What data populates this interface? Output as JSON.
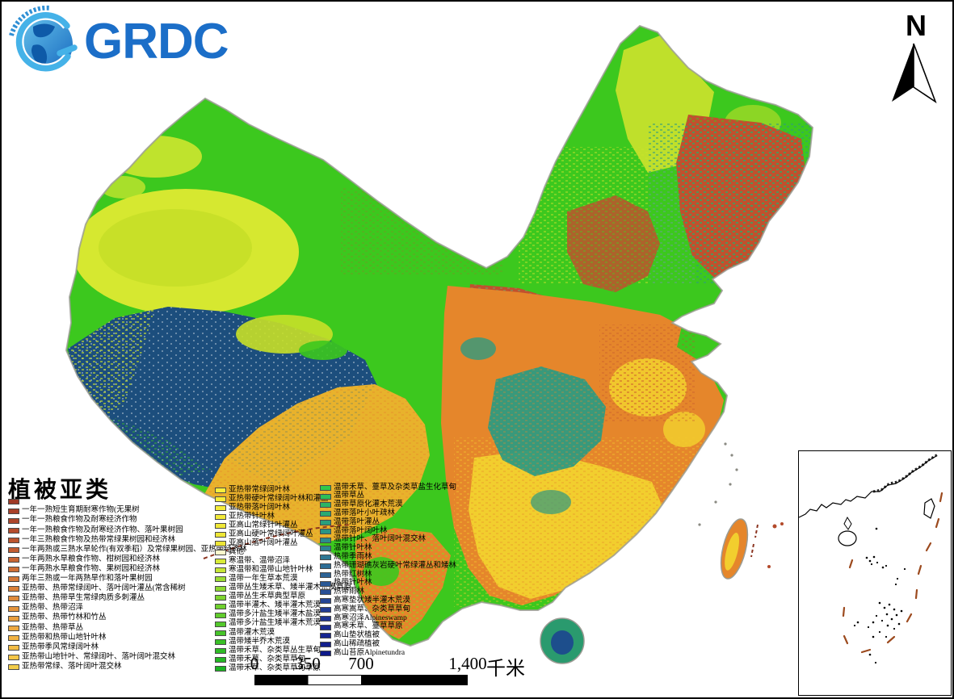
{
  "logo": {
    "text": "GRDC"
  },
  "north_arrow": {
    "label": "N"
  },
  "legend": {
    "title": "植被亚类",
    "columns": [
      {
        "items": [
          {
            "label": "",
            "color": "#9e3a27"
          },
          {
            "label": "一年一熟短生育期耐寒作物(无果树",
            "color": "#a84029"
          },
          {
            "label": "一年一熟粮食作物及耐寒经济作物",
            "color": "#ae462b"
          },
          {
            "label": "一年一熟粮食作物及耐寒经济作物、落叶果树园",
            "color": "#b54d2d"
          },
          {
            "label": "一年三熟粮食作物及热带常绿果树园和经济林",
            "color": "#bb552f"
          },
          {
            "label": "一年两熟或三熟水旱轮作(有双季稻）及常绿果树园、亚热带经济林",
            "color": "#c25d31"
          },
          {
            "label": "一年两熟水旱粮食作物、柑树园和经济林",
            "color": "#c86533"
          },
          {
            "label": "一年两熟水旱粮食作物、果树园和经济林",
            "color": "#ce6e35"
          },
          {
            "label": "两年三熟或一年两熟旱作和落叶果树园",
            "color": "#d47737"
          },
          {
            "label": "亚热带、热带常绿阔叶、落叶阔叶灌丛(常含稀树",
            "color": "#da8039"
          },
          {
            "label": "亚热带、热带旱生常绿肉质多刺灌丛",
            "color": "#df8a3b"
          },
          {
            "label": "亚热带、热带沼泽",
            "color": "#e4943d"
          },
          {
            "label": "亚热带、热带竹林和竹丛",
            "color": "#e89e3f"
          },
          {
            "label": "亚热带、热带草丛",
            "color": "#eca841"
          },
          {
            "label": "亚热带和热带山地针叶林",
            "color": "#f0b243"
          },
          {
            "label": "亚热带季风常绿阔叶林",
            "color": "#f2bc45"
          },
          {
            "label": "亚热带山地针叶、常绿阔叶、落叶阔叶混交林",
            "color": "#f4c647"
          },
          {
            "label": "亚热带常绿、落叶阔叶混交林",
            "color": "#f2cc49"
          }
        ]
      },
      {
        "items": [
          {
            "label": "亚热带常绿阔叶林",
            "color": "#f8f03c"
          },
          {
            "label": "亚热带硬叶常绿阔叶林和灌丛",
            "color": "#f6ee3b"
          },
          {
            "label": "亚热带落叶阔叶林",
            "color": "#f4ec3a"
          },
          {
            "label": "亚热带针叶林",
            "color": "#f2ea39"
          },
          {
            "label": "亚高山常绿针叶灌丛",
            "color": "#f0e838"
          },
          {
            "label": "亚高山硬叶常绿阔叶灌丛",
            "color": "#eee637"
          },
          {
            "label": "亚高山落叶阔叶灌丛",
            "color": "#ece436"
          },
          {
            "label": "其他",
            "color": "#fbf8cd"
          },
          {
            "label": "寒温带、温带沼泽",
            "color": "#d8ec38"
          },
          {
            "label": "寒温带和温带山地针叶林",
            "color": "#c6e636"
          },
          {
            "label": "温带一年生草本荒漠",
            "color": "#9cdc33"
          },
          {
            "label": "温带丛生矮禾草、矮半灌木荒漠草原",
            "color": "#8dd831"
          },
          {
            "label": "温带丛生禾草典型草原",
            "color": "#7ed430"
          },
          {
            "label": "温带半灌木、矮半灌木荒漠",
            "color": "#6fd02e"
          },
          {
            "label": "温带多汁盐生矮半灌木盐漠",
            "color": "#61cc2c"
          },
          {
            "label": "温带多汁盐生矮半灌木荒漠",
            "color": "#53c82b"
          },
          {
            "label": "温带灌木荒漠",
            "color": "#46c429"
          },
          {
            "label": "温带矮半乔木荒漠",
            "color": "#3ac027"
          },
          {
            "label": "温带禾草、杂类草丛生草甸",
            "color": "#2fbc26"
          },
          {
            "label": "温带禾草、杂类草草甸",
            "color": "#25b824"
          },
          {
            "label": "温带禾草、杂类草草甸草原",
            "color": "#1cb422"
          }
        ]
      },
      {
        "items": [
          {
            "label": "温带禾草、薹草及杂类草盐生化草甸",
            "color": "#2fc94a"
          },
          {
            "label": "温带草丛",
            "color": "#2dbf58"
          },
          {
            "label": "温带草原化灌木荒漠",
            "color": "#2bb465"
          },
          {
            "label": "温带落叶小叶疏林",
            "color": "#2aaa71"
          },
          {
            "label": "温带落叶灌丛",
            "color": "#2a9f7c"
          },
          {
            "label": "温带落叶阔叶林",
            "color": "#2a9585"
          },
          {
            "label": "温带针叶、落叶阔叶混交林",
            "color": "#2b8b8c"
          },
          {
            "label": "温带针叶林",
            "color": "#2c8191"
          },
          {
            "label": "热带季雨林",
            "color": "#2d7794"
          },
          {
            "label": "热带珊瑚礁灰岩硬叶常绿灌丛和矮林",
            "color": "#2d6d95"
          },
          {
            "label": "热带红树林",
            "color": "#2c6396"
          },
          {
            "label": "热带针叶林",
            "color": "#2a5996"
          },
          {
            "label": "热带雨林",
            "color": "#284f96"
          },
          {
            "label": "高寒垫状矮半灌木荒漠",
            "color": "#254596"
          },
          {
            "label": "高寒嵩草、杂类草草甸",
            "color": "#223c95"
          },
          {
            "label": "高寒沼泽Alpineswamp",
            "color": "#1e3494"
          },
          {
            "label": "高寒禾草、薹草草原",
            "color": "#1a2c92"
          },
          {
            "label": "高山垫状植被",
            "color": "#162590"
          },
          {
            "label": "高山稀疏植被",
            "color": "#121f8d"
          },
          {
            "label": "高山苔原Alpinetundra",
            "color": "#0e1a8a"
          }
        ]
      }
    ]
  },
  "scalebar": {
    "ticks": [
      {
        "label": "0",
        "pos": 0
      },
      {
        "label": "350",
        "pos": 0.25
      },
      {
        "label": "700",
        "pos": 0.5
      },
      {
        "label": "1,400",
        "pos": 1
      }
    ],
    "unit": "千米"
  },
  "map_colors": {
    "cropland_orange": "#e5862b",
    "cropland_yellow": "#f2ce2e",
    "steppe_green": "#3cc81e",
    "desert_chartreuse": "#d6e830",
    "alpine_navy": "#1c4e7d",
    "meadow_teal": "#2f9a80",
    "forest_brown": "#c0512e",
    "mustard_band": "#e8b22c",
    "boundary_red": "#8b3420"
  }
}
